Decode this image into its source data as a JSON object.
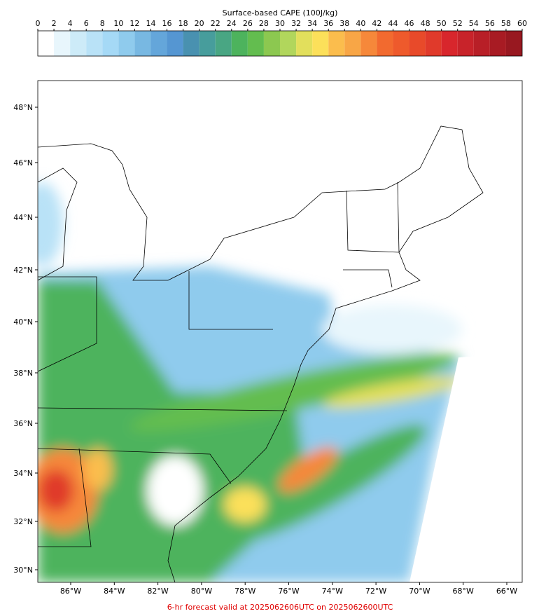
{
  "colorbar": {
    "title": "Surface-based CAPE (100J/kg)",
    "ticks": [
      0,
      2,
      4,
      6,
      8,
      10,
      12,
      14,
      16,
      18,
      20,
      22,
      24,
      26,
      28,
      30,
      32,
      34,
      36,
      38,
      40,
      42,
      44,
      46,
      48,
      50,
      52,
      54,
      56,
      58,
      60
    ],
    "colors": [
      "#ffffff",
      "#e8f6fc",
      "#cdebf8",
      "#b9e2f7",
      "#a5d9f6",
      "#8fcbed",
      "#78b8e2",
      "#64a6da",
      "#5596d2",
      "#4991b0",
      "#479d9c",
      "#49a683",
      "#4db35d",
      "#63bd4f",
      "#8cc850",
      "#b1d65c",
      "#e2df5c",
      "#fce05a",
      "#fbbd4d",
      "#f8a646",
      "#f6883a",
      "#f26a2f",
      "#ee5a2c",
      "#e84a2a",
      "#e03a2b",
      "#d8262c",
      "#c8232a",
      "#b81f27",
      "#a81b23",
      "#981820"
    ]
  },
  "map": {
    "lat_labels": [
      "48°N",
      "46°N",
      "44°N",
      "42°N",
      "40°N",
      "38°N",
      "36°N",
      "34°N",
      "32°N",
      "30°N"
    ],
    "lon_labels": [
      "86°W",
      "84°W",
      "82°W",
      "80°W",
      "78°W",
      "76°W",
      "74°W",
      "72°W",
      "70°W",
      "68°W",
      "66°W"
    ]
  },
  "footer": "6-hr forecast valid at 2025062606UTC on 2025062600UTC"
}
